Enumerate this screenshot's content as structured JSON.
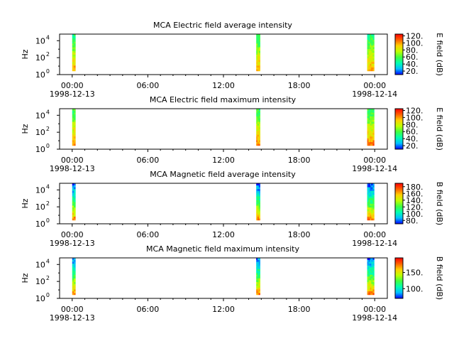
{
  "figure": {
    "time_axis": {
      "tick_labels": [
        "00:00",
        "06:00",
        "12:00",
        "18:00",
        "00:00"
      ],
      "tick_hours": [
        0,
        6,
        12,
        18,
        24
      ],
      "date_left": "1998-12-13",
      "date_right": "1998-12-14",
      "x_range_hours": [
        -1,
        25
      ]
    },
    "ylabel": "Hz",
    "y_ticks": [
      {
        "base": "10",
        "exp": "0",
        "value": 1
      },
      {
        "base": "10",
        "exp": "2",
        "value": 100
      },
      {
        "base": "10",
        "exp": "4",
        "value": 10000
      }
    ],
    "y_range_hz": [
      1,
      60000
    ],
    "y_scale": "log",
    "colormap": [
      "#0000ff",
      "#00c0ff",
      "#00ffb0",
      "#40ff40",
      "#c0ff00",
      "#ffd000",
      "#ff6000",
      "#ff0000"
    ]
  },
  "chart_data": [
    {
      "type": "heatmap",
      "title": "MCA  Electric field average intensity",
      "cbar_label": "E field (dB)",
      "cbar_ticks": [
        20,
        40,
        60,
        80,
        100,
        120
      ],
      "cbar_range": [
        10,
        125
      ],
      "high_freq_level": 50,
      "low_freq_level": 110,
      "segments": [
        {
          "start_h": 0.0,
          "end_h": 0.25
        },
        {
          "start_h": 14.6,
          "end_h": 14.9
        },
        {
          "start_h": 23.4,
          "end_h": 23.95
        }
      ]
    },
    {
      "type": "heatmap",
      "title": "MCA  Electric field maximum intensity",
      "cbar_label": "E field (dB)",
      "cbar_ticks": [
        20,
        40,
        60,
        80,
        100,
        120
      ],
      "cbar_range": [
        10,
        125
      ],
      "high_freq_level": 55,
      "low_freq_level": 115,
      "segments": [
        {
          "start_h": 0.0,
          "end_h": 0.25
        },
        {
          "start_h": 14.6,
          "end_h": 14.9
        },
        {
          "start_h": 23.4,
          "end_h": 23.95
        }
      ]
    },
    {
      "type": "heatmap",
      "title": "MCA  Magnetic field average intensity",
      "cbar_label": "B field (dB)",
      "cbar_ticks": [
        80,
        100,
        120,
        140,
        160,
        180
      ],
      "cbar_range": [
        70,
        190
      ],
      "high_freq_level": 75,
      "low_freq_level": 185,
      "segments": [
        {
          "start_h": 0.0,
          "end_h": 0.25
        },
        {
          "start_h": 14.6,
          "end_h": 14.9
        },
        {
          "start_h": 23.4,
          "end_h": 23.95
        }
      ]
    },
    {
      "type": "heatmap",
      "title": "MCA  Magnetic field maximum intensity",
      "cbar_label": "B field (dB)",
      "cbar_ticks": [
        100,
        150
      ],
      "cbar_range": [
        70,
        195
      ],
      "high_freq_level": 80,
      "low_freq_level": 190,
      "segments": [
        {
          "start_h": 0.0,
          "end_h": 0.25
        },
        {
          "start_h": 14.6,
          "end_h": 14.9
        },
        {
          "start_h": 23.4,
          "end_h": 23.95
        }
      ]
    }
  ]
}
